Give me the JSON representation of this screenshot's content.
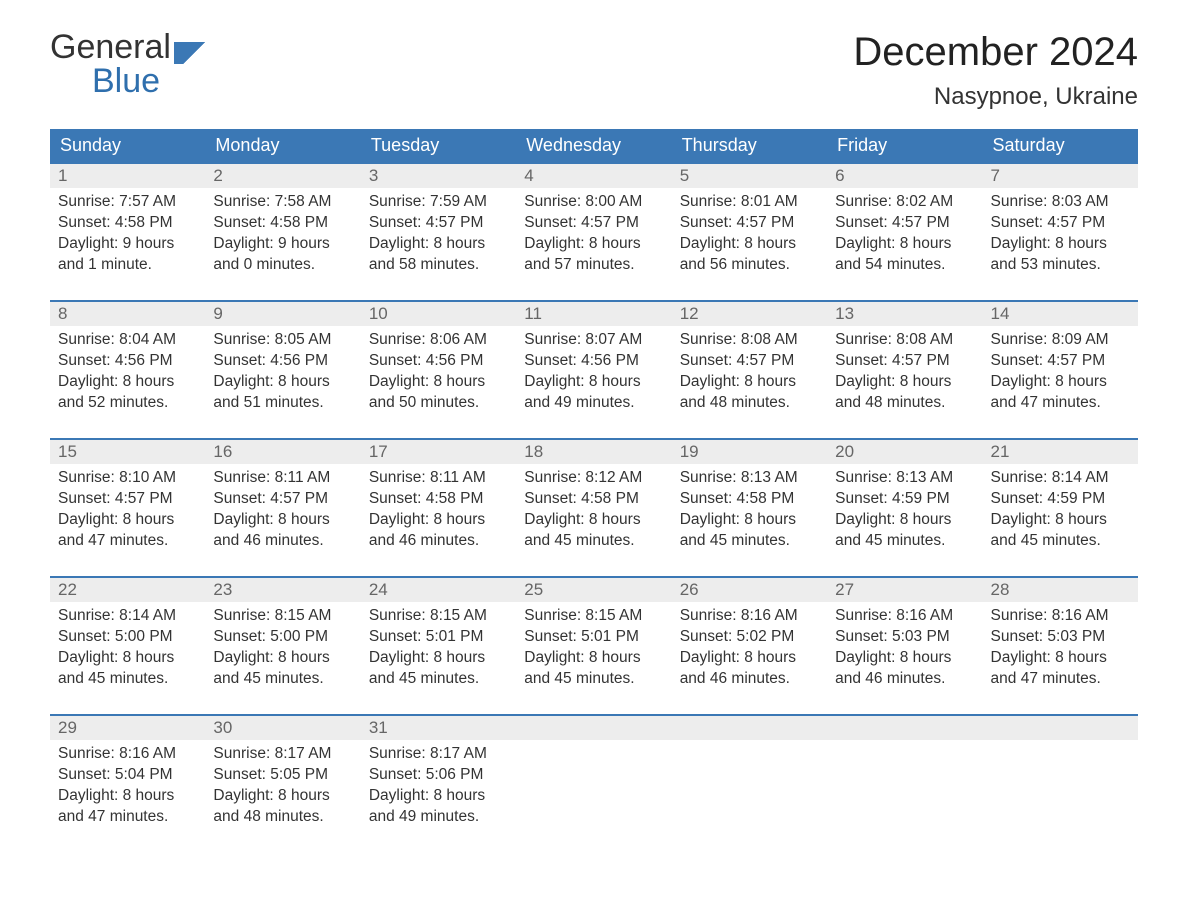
{
  "brand": {
    "line1": "General",
    "line2": "Blue"
  },
  "title": "December 2024",
  "location": "Nasypnoe, Ukraine",
  "colors": {
    "header_bg": "#3b78b5",
    "header_text": "#ffffff",
    "daynum_bg": "#ededed",
    "daynum_text": "#666666",
    "body_text": "#333333",
    "rule": "#3b78b5",
    "page_bg": "#ffffff"
  },
  "typography": {
    "title_fontsize": 40,
    "location_fontsize": 24,
    "header_fontsize": 18,
    "body_fontsize": 15.5
  },
  "day_labels": [
    "Sunday",
    "Monday",
    "Tuesday",
    "Wednesday",
    "Thursday",
    "Friday",
    "Saturday"
  ],
  "labels": {
    "sunrise": "Sunrise:",
    "sunset": "Sunset:",
    "daylight": "Daylight:"
  },
  "weeks": [
    [
      {
        "n": "1",
        "sunrise": "7:57 AM",
        "sunset": "4:58 PM",
        "daylight": "9 hours and 1 minute."
      },
      {
        "n": "2",
        "sunrise": "7:58 AM",
        "sunset": "4:58 PM",
        "daylight": "9 hours and 0 minutes."
      },
      {
        "n": "3",
        "sunrise": "7:59 AM",
        "sunset": "4:57 PM",
        "daylight": "8 hours and 58 minutes."
      },
      {
        "n": "4",
        "sunrise": "8:00 AM",
        "sunset": "4:57 PM",
        "daylight": "8 hours and 57 minutes."
      },
      {
        "n": "5",
        "sunrise": "8:01 AM",
        "sunset": "4:57 PM",
        "daylight": "8 hours and 56 minutes."
      },
      {
        "n": "6",
        "sunrise": "8:02 AM",
        "sunset": "4:57 PM",
        "daylight": "8 hours and 54 minutes."
      },
      {
        "n": "7",
        "sunrise": "8:03 AM",
        "sunset": "4:57 PM",
        "daylight": "8 hours and 53 minutes."
      }
    ],
    [
      {
        "n": "8",
        "sunrise": "8:04 AM",
        "sunset": "4:56 PM",
        "daylight": "8 hours and 52 minutes."
      },
      {
        "n": "9",
        "sunrise": "8:05 AM",
        "sunset": "4:56 PM",
        "daylight": "8 hours and 51 minutes."
      },
      {
        "n": "10",
        "sunrise": "8:06 AM",
        "sunset": "4:56 PM",
        "daylight": "8 hours and 50 minutes."
      },
      {
        "n": "11",
        "sunrise": "8:07 AM",
        "sunset": "4:56 PM",
        "daylight": "8 hours and 49 minutes."
      },
      {
        "n": "12",
        "sunrise": "8:08 AM",
        "sunset": "4:57 PM",
        "daylight": "8 hours and 48 minutes."
      },
      {
        "n": "13",
        "sunrise": "8:08 AM",
        "sunset": "4:57 PM",
        "daylight": "8 hours and 48 minutes."
      },
      {
        "n": "14",
        "sunrise": "8:09 AM",
        "sunset": "4:57 PM",
        "daylight": "8 hours and 47 minutes."
      }
    ],
    [
      {
        "n": "15",
        "sunrise": "8:10 AM",
        "sunset": "4:57 PM",
        "daylight": "8 hours and 47 minutes."
      },
      {
        "n": "16",
        "sunrise": "8:11 AM",
        "sunset": "4:57 PM",
        "daylight": "8 hours and 46 minutes."
      },
      {
        "n": "17",
        "sunrise": "8:11 AM",
        "sunset": "4:58 PM",
        "daylight": "8 hours and 46 minutes."
      },
      {
        "n": "18",
        "sunrise": "8:12 AM",
        "sunset": "4:58 PM",
        "daylight": "8 hours and 45 minutes."
      },
      {
        "n": "19",
        "sunrise": "8:13 AM",
        "sunset": "4:58 PM",
        "daylight": "8 hours and 45 minutes."
      },
      {
        "n": "20",
        "sunrise": "8:13 AM",
        "sunset": "4:59 PM",
        "daylight": "8 hours and 45 minutes."
      },
      {
        "n": "21",
        "sunrise": "8:14 AM",
        "sunset": "4:59 PM",
        "daylight": "8 hours and 45 minutes."
      }
    ],
    [
      {
        "n": "22",
        "sunrise": "8:14 AM",
        "sunset": "5:00 PM",
        "daylight": "8 hours and 45 minutes."
      },
      {
        "n": "23",
        "sunrise": "8:15 AM",
        "sunset": "5:00 PM",
        "daylight": "8 hours and 45 minutes."
      },
      {
        "n": "24",
        "sunrise": "8:15 AM",
        "sunset": "5:01 PM",
        "daylight": "8 hours and 45 minutes."
      },
      {
        "n": "25",
        "sunrise": "8:15 AM",
        "sunset": "5:01 PM",
        "daylight": "8 hours and 45 minutes."
      },
      {
        "n": "26",
        "sunrise": "8:16 AM",
        "sunset": "5:02 PM",
        "daylight": "8 hours and 46 minutes."
      },
      {
        "n": "27",
        "sunrise": "8:16 AM",
        "sunset": "5:03 PM",
        "daylight": "8 hours and 46 minutes."
      },
      {
        "n": "28",
        "sunrise": "8:16 AM",
        "sunset": "5:03 PM",
        "daylight": "8 hours and 47 minutes."
      }
    ],
    [
      {
        "n": "29",
        "sunrise": "8:16 AM",
        "sunset": "5:04 PM",
        "daylight": "8 hours and 47 minutes."
      },
      {
        "n": "30",
        "sunrise": "8:17 AM",
        "sunset": "5:05 PM",
        "daylight": "8 hours and 48 minutes."
      },
      {
        "n": "31",
        "sunrise": "8:17 AM",
        "sunset": "5:06 PM",
        "daylight": "8 hours and 49 minutes."
      },
      null,
      null,
      null,
      null
    ]
  ]
}
